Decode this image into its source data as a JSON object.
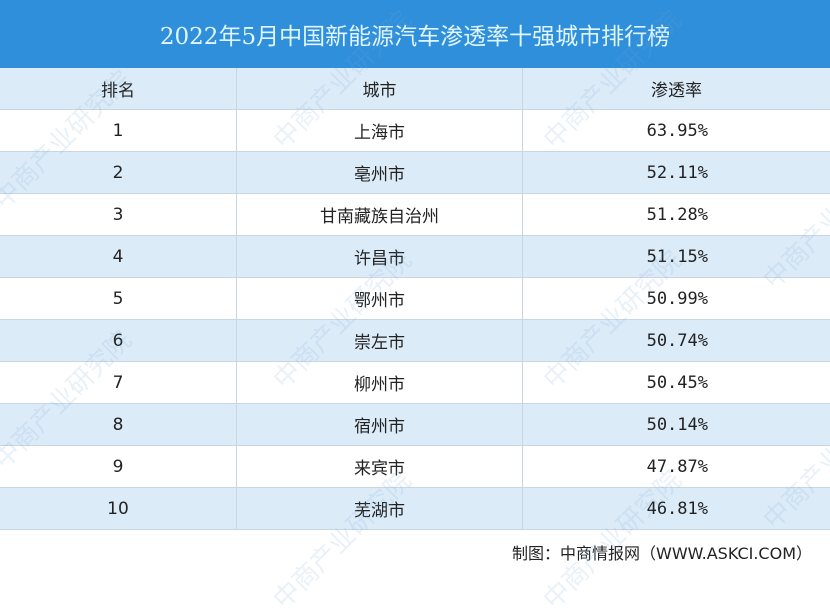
{
  "title": "2022年5月中国新能源汽车渗透率十强城市排行榜",
  "watermark": "中商产业研究院",
  "colors": {
    "title_bg": "#2f8fdb",
    "row_alt": "#dcebf8"
  },
  "chart_data": {
    "type": "table",
    "title": "2022年5月中国新能源汽车渗透率十强城市排行榜",
    "columns": [
      "排名",
      "城市",
      "渗透率"
    ],
    "rows": [
      [
        "1",
        "上海市",
        "63.95%"
      ],
      [
        "2",
        "亳州市",
        "52.11%"
      ],
      [
        "3",
        "甘南藏族自治州",
        "51.28%"
      ],
      [
        "4",
        "许昌市",
        "51.15%"
      ],
      [
        "5",
        "鄂州市",
        "50.99%"
      ],
      [
        "6",
        "崇左市",
        "50.74%"
      ],
      [
        "7",
        "柳州市",
        "50.45%"
      ],
      [
        "8",
        "宿州市",
        "50.14%"
      ],
      [
        "9",
        "来宾市",
        "47.87%"
      ],
      [
        "10",
        "芜湖市",
        "46.81%"
      ]
    ]
  },
  "footer": "制图：中商情报网（WWW.ASKCI.COM）"
}
